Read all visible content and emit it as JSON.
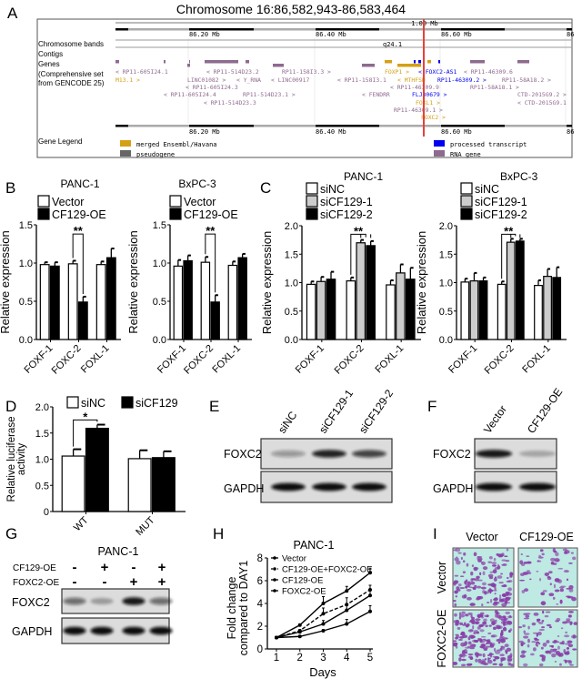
{
  "panel_letters": [
    "A",
    "B",
    "C",
    "D",
    "E",
    "F",
    "G",
    "H",
    "I"
  ],
  "panel_a": {
    "title": "Chromosome 16:86,582,943-86,583,464",
    "scale_label": "1.00 Mb",
    "ticks": [
      "86.20 Mb",
      "86.40 Mb",
      "86.60 Mb",
      "86"
    ],
    "band": "q24.1",
    "track_labels": [
      "Chromosome bands",
      "Contigs",
      "Genes",
      "(Comprehensive set",
      "from GENCODE 25)",
      "Gene Legend"
    ],
    "genes": [
      {
        "label": "< RP11-605I24.1",
        "type": "rna"
      },
      {
        "label": "< RP11-514D23.2",
        "type": "rna"
      },
      {
        "label": "RP11-158I3.3 >",
        "type": "rna"
      },
      {
        "label": "FOXP1 >",
        "type": "merged"
      },
      {
        "label": "< FOXC2-AS1",
        "type": "processed"
      },
      {
        "label": "< RP11-46309.6",
        "type": "rna"
      },
      {
        "label": "M13.1 >",
        "type": "merged"
      },
      {
        "label": "LINC01082 >",
        "type": "rna"
      },
      {
        "label": "< Y_RNA",
        "type": "rna"
      },
      {
        "label": "< LINC00917",
        "type": "rna"
      },
      {
        "label": "< RP11-158I3.1",
        "type": "rna"
      },
      {
        "label": "< MTHFSD",
        "type": "merged"
      },
      {
        "label": "RP11-46309.2 >",
        "type": "processed"
      },
      {
        "label": "RP11-58A18.2 >",
        "type": "rna"
      },
      {
        "label": "< RP11-605I24.3",
        "type": "rna"
      },
      {
        "label": "< RP11-46309.9",
        "type": "rna"
      },
      {
        "label": "RP11-58A18.1 >",
        "type": "rna"
      },
      {
        "label": "< RP11-605I24.4",
        "type": "rna"
      },
      {
        "label": "RP11-514D23.1 >",
        "type": "rna"
      },
      {
        "label": "< FENDRR",
        "type": "rna"
      },
      {
        "label": "FLJ30679 >",
        "type": "processed"
      },
      {
        "label": "CTD-2015G9.2 >",
        "type": "rna"
      },
      {
        "label": "< RP11-514D23.3",
        "type": "rna"
      },
      {
        "label": "FOXL1 >",
        "type": "merged"
      },
      {
        "label": "< CTD-2015G9.1",
        "type": "rna"
      },
      {
        "label": "RP11-46309.1 >",
        "type": "rna"
      },
      {
        "label": "FOXC2 >",
        "type": "merged"
      }
    ],
    "legend": [
      {
        "label": "merged Ensembl/Havana",
        "type": "merged"
      },
      {
        "label": "pseudogene",
        "type": "pseudo"
      },
      {
        "label": "processed transcript",
        "type": "processed"
      },
      {
        "label": "RNA gene",
        "type": "rna"
      }
    ],
    "colors": {
      "merged": "#d4a017",
      "pseudo": "#666666",
      "processed": "#0000ee",
      "rna": "#8e6a8e",
      "marker": "#e8403a"
    }
  },
  "chart_data": [
    {
      "panel": "B",
      "type": "bar",
      "title": "PANC-1",
      "ylabel": "Relative expression",
      "categories": [
        "FOXF-1",
        "FOXC-2",
        "FOXL-1"
      ],
      "ylim": [
        0,
        1.5
      ],
      "yticks": [
        "0.0",
        "0.5",
        "1.0",
        "1.5"
      ],
      "legend_position": "top-left",
      "series": [
        {
          "name": "Vector",
          "fill": "#ffffff",
          "values": [
            0.98,
            0.99,
            0.98
          ],
          "errors": [
            0.03,
            0.04,
            0.04
          ]
        },
        {
          "name": "CF129-OE",
          "fill": "#000000",
          "values": [
            0.96,
            0.49,
            1.07
          ],
          "errors": [
            0.05,
            0.07,
            0.12
          ]
        }
      ],
      "annotations": [
        {
          "text": "**",
          "category": "FOXC-2",
          "level": 1.38
        }
      ]
    },
    {
      "panel": "B",
      "type": "bar",
      "title": "BxPC-3",
      "ylabel": "Relative expression",
      "categories": [
        "FOXF-1",
        "FOXC-2",
        "FOXL-1"
      ],
      "ylim": [
        0,
        1.5
      ],
      "yticks": [
        "0.0",
        "0.5",
        "1.0",
        "1.5"
      ],
      "legend_position": "top-left",
      "series": [
        {
          "name": "Vector",
          "fill": "#ffffff",
          "values": [
            0.96,
            1.01,
            0.97
          ],
          "errors": [
            0.08,
            0.07,
            0.05
          ]
        },
        {
          "name": "CF129-OE",
          "fill": "#000000",
          "values": [
            1.03,
            0.49,
            1.07
          ],
          "errors": [
            0.07,
            0.09,
            0.05
          ]
        }
      ],
      "annotations": [
        {
          "text": "**",
          "category": "FOXC-2",
          "level": 1.38
        }
      ]
    },
    {
      "panel": "C",
      "type": "bar",
      "title": "PANC-1",
      "ylabel": "Relative expression",
      "categories": [
        "FOXF-1",
        "FOXC-2",
        "FOXL-1"
      ],
      "ylim": [
        0,
        2.0
      ],
      "yticks": [
        "0.0",
        "0.5",
        "1.0",
        "1.5",
        "2.0"
      ],
      "legend_position": "top-left",
      "series": [
        {
          "name": "siNC",
          "fill": "#ffffff",
          "values": [
            0.97,
            1.03,
            0.96
          ],
          "errors": [
            0.05,
            0.06,
            0.08
          ]
        },
        {
          "name": "siCF129-1",
          "fill": "#cccccc",
          "values": [
            1.02,
            1.7,
            1.17
          ],
          "errors": [
            0.08,
            0.05,
            0.15
          ]
        },
        {
          "name": "siCF129-2",
          "fill": "#000000",
          "values": [
            1.06,
            1.65,
            1.06
          ],
          "errors": [
            0.13,
            0.08,
            0.2
          ]
        }
      ],
      "annotations": [
        {
          "text": "**",
          "category": "FOXC-2",
          "level": 1.85
        }
      ]
    },
    {
      "panel": "C",
      "type": "bar",
      "title": "BxPC-3",
      "ylabel": "Relative expression",
      "categories": [
        "FOXF-1",
        "FOXC-2",
        "FOXL-1"
      ],
      "ylim": [
        0,
        2.0
      ],
      "yticks": [
        "0.0",
        "0.5",
        "1.0",
        "1.5",
        "2.0"
      ],
      "legend_position": "top-left",
      "series": [
        {
          "name": "siNC",
          "fill": "#ffffff",
          "values": [
            1.01,
            0.97,
            0.95
          ],
          "errors": [
            0.06,
            0.05,
            0.09
          ]
        },
        {
          "name": "siCF129-1",
          "fill": "#cccccc",
          "values": [
            1.03,
            1.71,
            1.11
          ],
          "errors": [
            0.14,
            0.06,
            0.13
          ]
        },
        {
          "name": "siCF129-2",
          "fill": "#000000",
          "values": [
            1.03,
            1.73,
            1.09
          ],
          "errors": [
            0.06,
            0.04,
            0.18
          ]
        }
      ],
      "annotations": [
        {
          "text": "**",
          "category": "FOXC-2",
          "level": 1.85
        }
      ]
    },
    {
      "panel": "D",
      "type": "bar",
      "title": "",
      "ylabel_lines": [
        "Relative luciferase",
        "activity"
      ],
      "categories": [
        "WT",
        "MUT"
      ],
      "ylim": [
        0,
        2.0
      ],
      "yticks": [
        "0",
        "0.5",
        "1.0",
        "1.5",
        "2.0"
      ],
      "legend_position": "top",
      "series": [
        {
          "name": "siNC",
          "fill": "#ffffff",
          "values": [
            1.06,
            1.01
          ],
          "errors": [
            0.13,
            0.16
          ]
        },
        {
          "name": "siCF129",
          "fill": "#000000",
          "values": [
            1.59,
            1.03
          ],
          "errors": [
            0.07,
            0.12
          ]
        }
      ],
      "annotations": [
        {
          "text": "*",
          "category": "WT",
          "level": 1.75
        }
      ]
    },
    {
      "panel": "H",
      "type": "line",
      "title": "PANC-1",
      "xlabel": "Days",
      "ylabel_lines": [
        "Fold change",
        "compared to DAY1"
      ],
      "x": [
        1,
        2,
        3,
        4,
        5
      ],
      "xticks": [
        "1",
        "2",
        "3",
        "4",
        "5"
      ],
      "ylim": [
        0,
        8
      ],
      "yticks": [
        "0",
        "2",
        "4",
        "6",
        "8"
      ],
      "legend_position": "top-left",
      "series": [
        {
          "name": "Vector",
          "dashed": false,
          "values": [
            1.0,
            2.1,
            4.0,
            5.1,
            6.7
          ],
          "errors": [
            0.1,
            0.1,
            0.6,
            0.4,
            0.4
          ]
        },
        {
          "name": "CF129-OE+FOXC2-OE",
          "dashed": true,
          "values": [
            1.0,
            1.6,
            3.1,
            3.9,
            5.2
          ],
          "errors": [
            0.1,
            0.1,
            0.5,
            0.6,
            0.4
          ]
        },
        {
          "name": "CF129-OE",
          "dashed": false,
          "values": [
            1.0,
            1.1,
            1.6,
            2.2,
            3.3
          ],
          "errors": [
            0.1,
            0.1,
            0.1,
            0.4,
            0.5
          ]
        },
        {
          "name": "FOXC2-OE",
          "dashed": false,
          "values": [
            1.0,
            1.5,
            2.2,
            3.4,
            4.7
          ],
          "errors": [
            0.1,
            0.1,
            0.3,
            0.5,
            0.5
          ]
        }
      ]
    }
  ],
  "blots": {
    "E": {
      "lanes": [
        "siNC",
        "siCF129-1",
        "siCF129-2"
      ],
      "rows": [
        {
          "label": "FOXC2",
          "intensity": [
            0.35,
            0.9,
            0.75
          ]
        },
        {
          "label": "GAPDH",
          "intensity": [
            1,
            1,
            1
          ]
        }
      ]
    },
    "F": {
      "lanes": [
        "Vector",
        "CF129-OE"
      ],
      "rows": [
        {
          "label": "FOXC2",
          "intensity": [
            0.95,
            0.25
          ]
        },
        {
          "label": "GAPDH",
          "intensity": [
            1,
            1
          ]
        }
      ]
    },
    "G": {
      "title": "PANC-1",
      "conditions": [
        {
          "label": "CF129-OE",
          "signs": [
            "-",
            "+",
            "-",
            "+"
          ]
        },
        {
          "label": "FOXC2-OE",
          "signs": [
            "-",
            "-",
            "+",
            "+"
          ]
        }
      ],
      "rows": [
        {
          "label": "FOXC2",
          "intensity": [
            0.55,
            0.3,
            0.95,
            0.55
          ]
        },
        {
          "label": "GAPDH",
          "intensity": [
            1,
            1,
            1,
            1
          ]
        }
      ]
    }
  },
  "panel_i": {
    "columns": [
      "Vector",
      "CF129-OE"
    ],
    "rows": [
      "Vector",
      "FOXC2-OE"
    ],
    "cell_density": [
      [
        0.55,
        0.25
      ],
      [
        0.8,
        0.4
      ]
    ],
    "colors": {
      "background": "#bfe9e3",
      "cells": "#8a3fa8"
    }
  }
}
